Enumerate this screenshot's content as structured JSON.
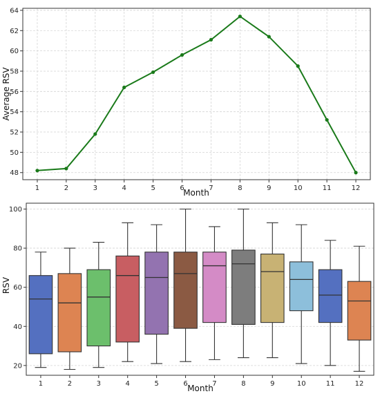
{
  "chart_data": [
    {
      "type": "line",
      "x": [
        1,
        2,
        3,
        4,
        5,
        6,
        7,
        8,
        9,
        10,
        11,
        12
      ],
      "values": [
        48.2,
        48.4,
        51.8,
        56.4,
        57.9,
        59.6,
        61.1,
        63.4,
        61.4,
        58.5,
        53.2,
        48.0
      ],
      "xlabel": "Month",
      "ylabel": "Average RSV",
      "yticks": [
        48,
        50,
        52,
        54,
        56,
        58,
        60,
        62,
        64
      ],
      "ylim": [
        47.3,
        64.2
      ],
      "xlim": [
        0.5,
        12.5
      ],
      "color": "#1a7a1a",
      "grid": true
    },
    {
      "type": "box",
      "categories": [
        "1",
        "2",
        "3",
        "4",
        "5",
        "6",
        "7",
        "8",
        "9",
        "10",
        "11",
        "12"
      ],
      "boxes": [
        {
          "whisker_low": 19,
          "q1": 26,
          "median": 54,
          "q3": 66,
          "whisker_high": 78,
          "color": "#5470c0"
        },
        {
          "whisker_low": 18,
          "q1": 27,
          "median": 52,
          "q3": 67,
          "whisker_high": 80,
          "color": "#dd8452"
        },
        {
          "whisker_low": 19,
          "q1": 30,
          "median": 55,
          "q3": 69,
          "whisker_high": 83,
          "color": "#6cbf6c"
        },
        {
          "whisker_low": 22,
          "q1": 32,
          "median": 66,
          "q3": 76,
          "whisker_high": 93,
          "color": "#c85e62"
        },
        {
          "whisker_low": 21,
          "q1": 36,
          "median": 65,
          "q3": 78,
          "whisker_high": 92,
          "color": "#9373b0"
        },
        {
          "whisker_low": 22,
          "q1": 39,
          "median": 67,
          "q3": 78,
          "whisker_high": 100,
          "color": "#8b5a43"
        },
        {
          "whisker_low": 23,
          "q1": 42,
          "median": 71,
          "q3": 78,
          "whisker_high": 91,
          "color": "#d48bc6"
        },
        {
          "whisker_low": 24,
          "q1": 41,
          "median": 72,
          "q3": 79,
          "whisker_high": 100,
          "color": "#7d7d7d"
        },
        {
          "whisker_low": 24,
          "q1": 42,
          "median": 68,
          "q3": 77,
          "whisker_high": 93,
          "color": "#c8b274"
        },
        {
          "whisker_low": 21,
          "q1": 48,
          "median": 64,
          "q3": 73,
          "whisker_high": 92,
          "color": "#8dbfdb"
        },
        {
          "whisker_low": 20,
          "q1": 42,
          "median": 56,
          "q3": 69,
          "whisker_high": 84,
          "color": "#5470c0"
        },
        {
          "whisker_low": 17,
          "q1": 33,
          "median": 53,
          "q3": 63,
          "whisker_high": 81,
          "color": "#dd8452"
        }
      ],
      "xlabel": "Month",
      "ylabel": "RSV",
      "yticks": [
        20,
        40,
        60,
        80,
        100
      ],
      "ylim": [
        15,
        103
      ],
      "grid": true
    }
  ]
}
